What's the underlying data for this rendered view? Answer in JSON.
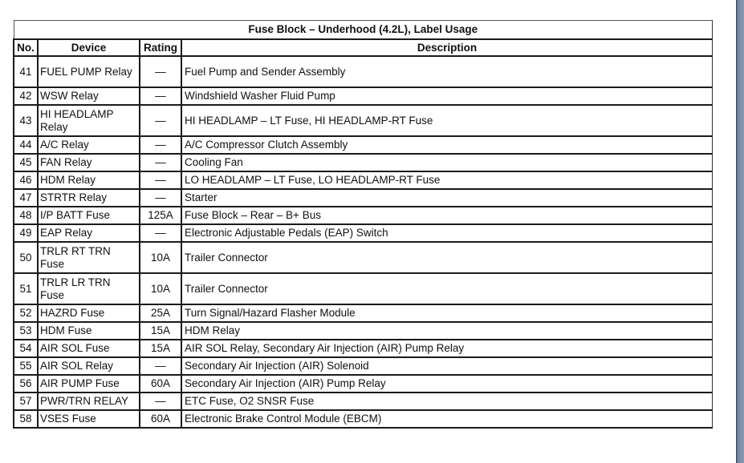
{
  "title": "Fuse Block – Underhood (4.2L), Label Usage",
  "columns": [
    "No.",
    "Device",
    "Rating",
    "Description"
  ],
  "rows": [
    {
      "no": "41",
      "device": "FUEL PUMP Relay",
      "rating": "—",
      "description": "Fuel Pump and Sender Assembly",
      "lines": 2
    },
    {
      "no": "42",
      "device": "WSW Relay",
      "rating": "—",
      "description": "Windshield Washer Fluid Pump",
      "lines": 1
    },
    {
      "no": "43",
      "device": "HI HEADLAMP Relay",
      "rating": "—",
      "description": "HI HEADLAMP – LT Fuse, HI HEADLAMP-RT Fuse",
      "lines": 2
    },
    {
      "no": "44",
      "device": "A/C Relay",
      "rating": "—",
      "description": "A/C Compressor Clutch Assembly",
      "lines": 1
    },
    {
      "no": "45",
      "device": "FAN Relay",
      "rating": "—",
      "description": "Cooling Fan",
      "lines": 1
    },
    {
      "no": "46",
      "device": "HDM Relay",
      "rating": "—",
      "description": "LO HEADLAMP – LT Fuse, LO HEADLAMP-RT Fuse",
      "lines": 1
    },
    {
      "no": "47",
      "device": "STRTR Relay",
      "rating": "—",
      "description": "Starter",
      "lines": 1
    },
    {
      "no": "48",
      "device": "I/P BATT Fuse",
      "rating": "125A",
      "description": "Fuse Block – Rear – B+ Bus",
      "lines": 1
    },
    {
      "no": "49",
      "device": "EAP Relay",
      "rating": "—",
      "description": "Electronic Adjustable Pedals (EAP) Switch",
      "lines": 1
    },
    {
      "no": "50",
      "device": "TRLR RT TRN Fuse",
      "rating": "10A",
      "description": "Trailer Connector",
      "lines": 2
    },
    {
      "no": "51",
      "device": "TRLR LR TRN Fuse",
      "rating": "10A",
      "description": "Trailer Connector",
      "lines": 2
    },
    {
      "no": "52",
      "device": "HAZRD Fuse",
      "rating": "25A",
      "description": "Turn Signal/Hazard Flasher Module",
      "lines": 1
    },
    {
      "no": "53",
      "device": "HDM Fuse",
      "rating": "15A",
      "description": "HDM Relay",
      "lines": 1
    },
    {
      "no": "54",
      "device": "AIR SOL Fuse",
      "rating": "15A",
      "description": "AIR SOL Relay, Secondary Air Injection (AIR) Pump Relay",
      "lines": 1
    },
    {
      "no": "55",
      "device": "AIR SOL Relay",
      "rating": "—",
      "description": "Secondary Air Injection (AIR) Solenoid",
      "lines": 1
    },
    {
      "no": "56",
      "device": "AIR PUMP Fuse",
      "rating": "60A",
      "description": "Secondary Air Injection (AIR) Pump Relay",
      "lines": 1
    },
    {
      "no": "57",
      "device": "PWR/TRN RELAY",
      "rating": "—",
      "description": "ETC Fuse, O2 SNSR Fuse",
      "lines": 1
    },
    {
      "no": "58",
      "device": "VSES Fuse",
      "rating": "60A",
      "description": "Electronic Brake Control Module (EBCM)",
      "lines": 1
    }
  ]
}
